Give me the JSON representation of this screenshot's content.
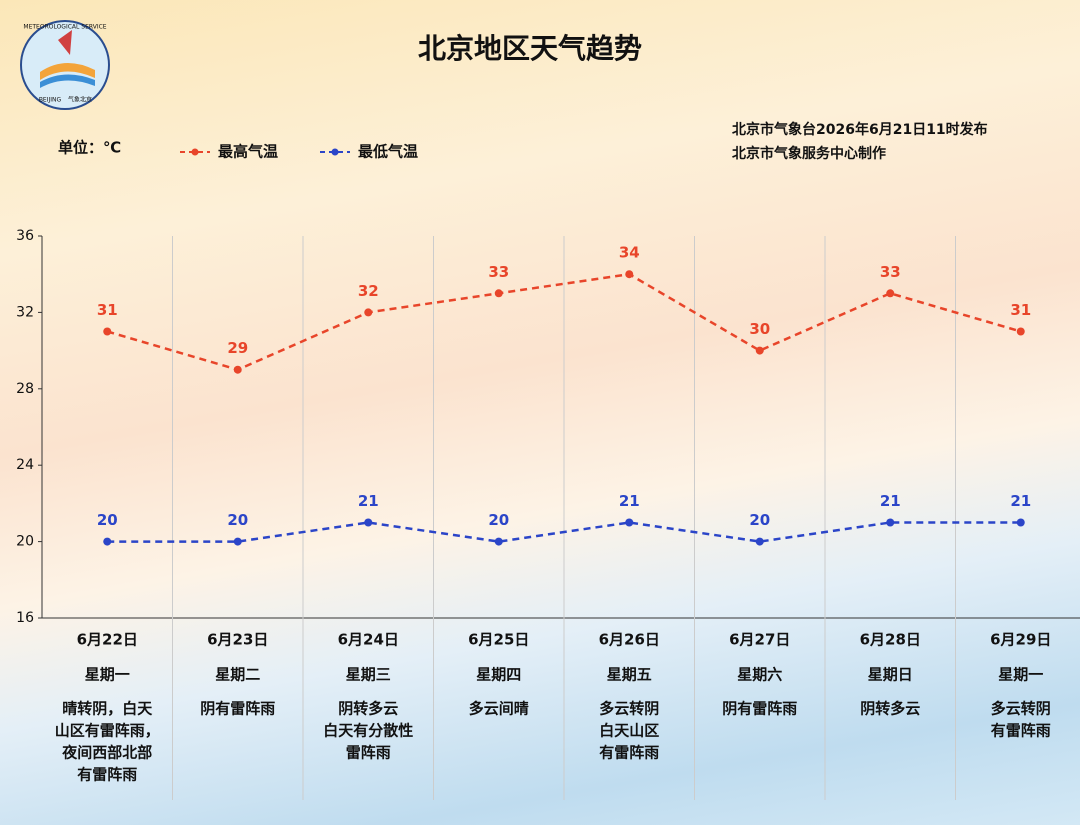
{
  "chart_data": {
    "type": "line",
    "title": "北京地区天气趋势",
    "unit_label": "单位：℃",
    "publisher": [
      "北京市气象台2026年6月21日11时发布",
      "北京市气象服务中心制作"
    ],
    "logo_text": [
      "METEOROLOGICAL SERVICE",
      "BEIJING",
      "气象北京"
    ],
    "categories": [
      "6月22日",
      "6月23日",
      "6月24日",
      "6月25日",
      "6月26日",
      "6月27日",
      "6月28日",
      "6月29日"
    ],
    "weekdays": [
      "星期一",
      "星期二",
      "星期三",
      "星期四",
      "星期五",
      "星期六",
      "星期日",
      "星期一"
    ],
    "weather": [
      [
        "晴转阴，白天",
        "山区有雷阵雨，",
        "夜间西部北部",
        "有雷阵雨"
      ],
      [
        "阴有雷阵雨"
      ],
      [
        "阴转多云",
        "白天有分散性",
        "雷阵雨"
      ],
      [
        "多云间晴"
      ],
      [
        "多云转阴",
        "白天山区",
        "有雷阵雨"
      ],
      [
        "阴有雷阵雨"
      ],
      [
        "阴转多云"
      ],
      [
        "多云转阴",
        "有雷阵雨"
      ]
    ],
    "series": [
      {
        "name": "最高气温",
        "color": "#e8452a",
        "values": [
          31,
          29,
          32,
          33,
          34,
          30,
          33,
          31
        ]
      },
      {
        "name": "最低气温",
        "color": "#2b45c8",
        "values": [
          20,
          20,
          21,
          20,
          21,
          20,
          21,
          21
        ]
      }
    ],
    "ylim": [
      16,
      36
    ],
    "yticks": [
      16,
      20,
      24,
      28,
      32,
      36
    ],
    "grid": true
  }
}
